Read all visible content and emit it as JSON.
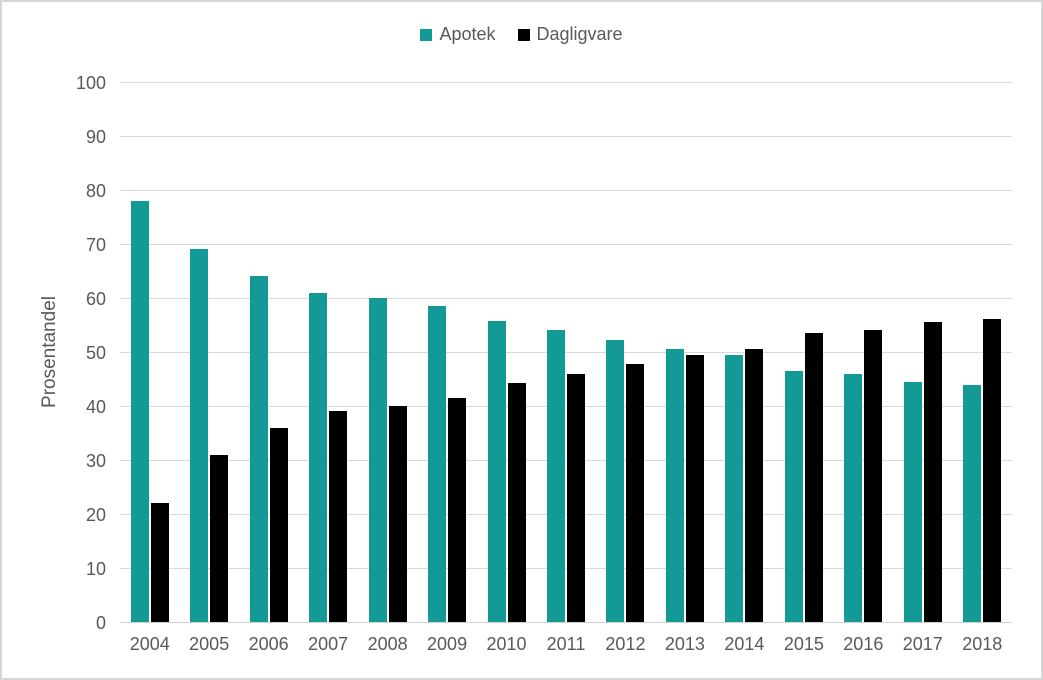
{
  "chart_data": {
    "type": "bar",
    "title": "",
    "categories": [
      "2004",
      "2005",
      "2006",
      "2007",
      "2008",
      "2009",
      "2010",
      "2011",
      "2012",
      "2013",
      "2014",
      "2015",
      "2016",
      "2017",
      "2018"
    ],
    "series": [
      {
        "name": "Apotek",
        "color": "#149a96",
        "values": [
          78,
          69,
          64,
          61,
          60,
          58.5,
          55.8,
          54,
          52.3,
          50.5,
          49.4,
          46.5,
          46,
          44.4,
          43.8
        ]
      },
      {
        "name": "Dagligvare",
        "color": "#000000",
        "values": [
          22,
          31,
          36,
          39,
          40,
          41.5,
          44.2,
          46,
          47.7,
          49.5,
          50.6,
          53.5,
          54,
          55.6,
          56.2
        ]
      }
    ],
    "xlabel": "",
    "ylabel": "Prosentandel",
    "ylim": [
      0,
      100
    ],
    "ytick_step": 10,
    "yticks": [
      "0",
      "10",
      "20",
      "30",
      "40",
      "50",
      "60",
      "70",
      "80",
      "90",
      "100"
    ],
    "grid": true,
    "legend_position": "top-center"
  },
  "colors": {
    "gridline": "#d9d9d9",
    "axis_text": "#595959",
    "frame_border": "#d6d6d6",
    "background": "#ffffff"
  }
}
